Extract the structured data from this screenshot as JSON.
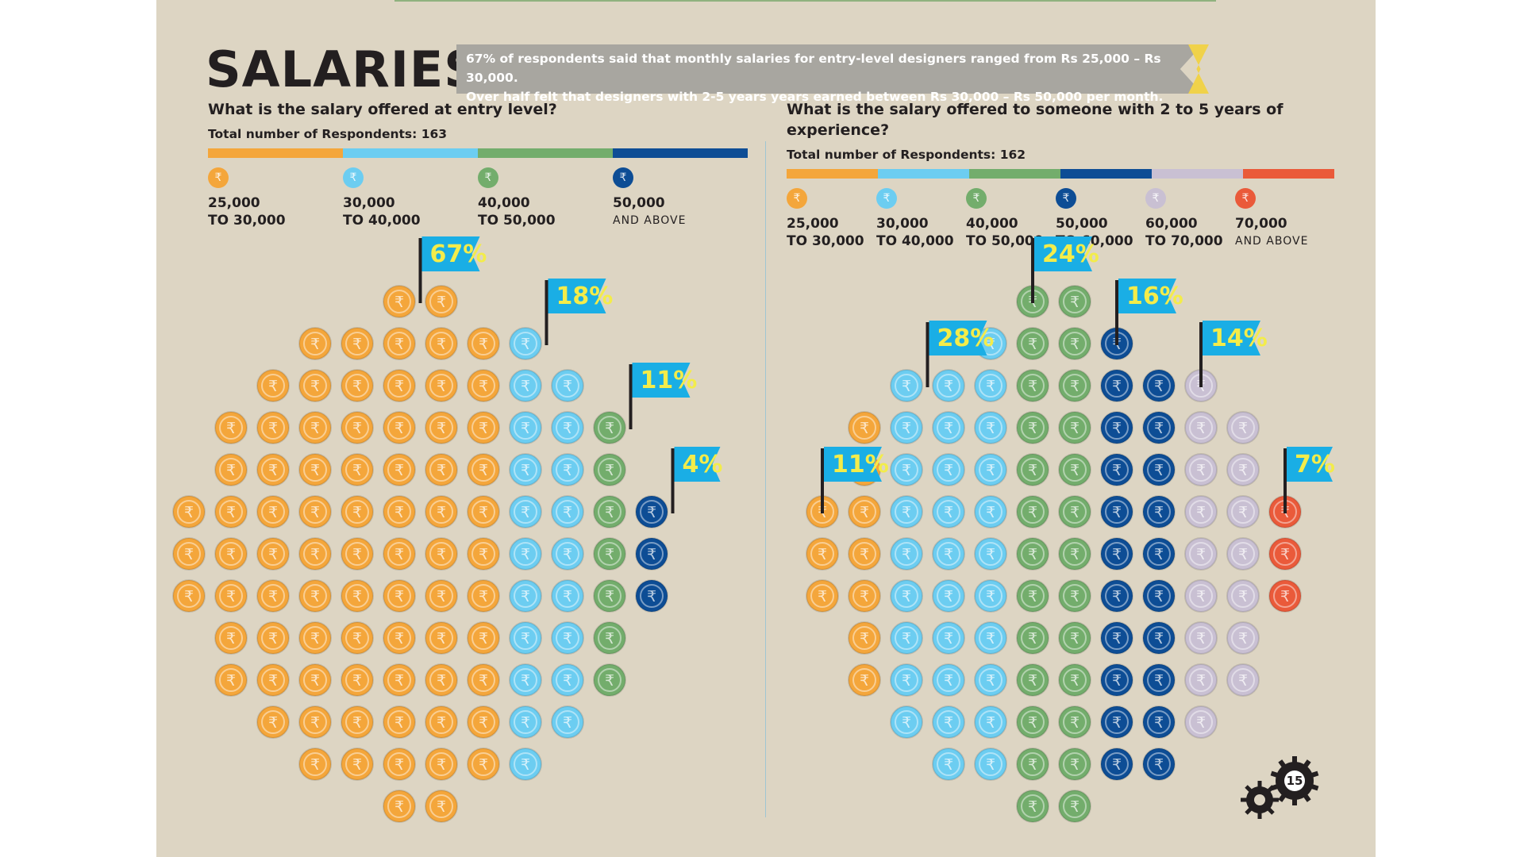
{
  "title": "SALARIES",
  "banner": {
    "line1": "67% of respondents said that monthly salaries for entry-level designers ranged from Rs 25,000 – Rs 30,000.",
    "line2": "Over half felt that designers with 2-5 years years earned between Rs 30,000 – Rs 50,000 per month."
  },
  "page_number": "15",
  "currency_icon": "rupee-coin-icon",
  "chart_data": [
    {
      "type": "pictogram",
      "title": "What is the salary offered at entry level?",
      "subtitle": "Total number of Respondents: 163",
      "respondents": 163,
      "categories": [
        {
          "line1": "25,000",
          "line2": "TO 30,000",
          "percent": 67,
          "label": "67%",
          "color": "#f4a63b"
        },
        {
          "line1": "30,000",
          "line2": "TO 40,000",
          "percent": 18,
          "label": "18%",
          "color": "#6ccdf1"
        },
        {
          "line1": "40,000",
          "line2": "TO 50,000",
          "percent": 11,
          "label": "11%",
          "color": "#73ad6c"
        },
        {
          "line1": "50,000",
          "line2": "AND ABOVE",
          "percent": 4,
          "label": "4%",
          "color": "#0d4d95"
        }
      ]
    },
    {
      "type": "pictogram",
      "title": "What is the salary offered to someone with 2 to 5 years of experience?",
      "subtitle": "Total number of Respondents: 162",
      "respondents": 162,
      "categories": [
        {
          "line1": "25,000",
          "line2": "TO 30,000",
          "percent": 11,
          "label": "11%",
          "color": "#f4a63b"
        },
        {
          "line1": "30,000",
          "line2": "TO 40,000",
          "percent": 28,
          "label": "28%",
          "color": "#6ccdf1"
        },
        {
          "line1": "40,000",
          "line2": "TO 50,000",
          "percent": 24,
          "label": "24%",
          "color": "#73ad6c"
        },
        {
          "line1": "50,000",
          "line2": "TO 60,000",
          "percent": 16,
          "label": "16%",
          "color": "#0d4d95"
        },
        {
          "line1": "60,000",
          "line2": "TO 70,000",
          "percent": 14,
          "label": "14%",
          "color": "#c9c0d3"
        },
        {
          "line1": "70,000",
          "line2": "AND ABOVE",
          "percent": 7,
          "label": "7%",
          "color": "#ea5a3a"
        }
      ]
    }
  ]
}
